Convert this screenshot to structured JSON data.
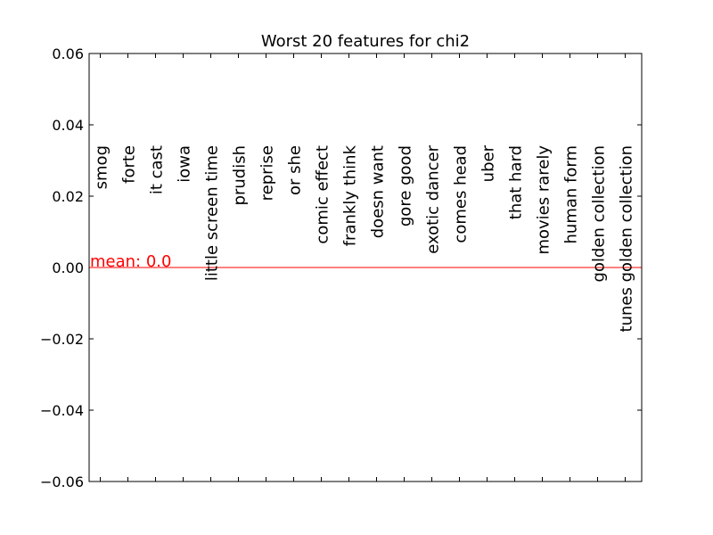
{
  "chart_data": {
    "type": "bar",
    "title": "Worst 20 features for chi2",
    "xlabel": "",
    "ylabel": "",
    "ylim": [
      -0.06,
      0.06
    ],
    "yticks": [
      0.06,
      0.04,
      0.02,
      0.0,
      -0.02,
      -0.04,
      -0.06
    ],
    "ytick_labels": [
      "0.06",
      "0.04",
      "0.02",
      "0.00",
      "−0.02",
      "−0.04",
      "−0.06"
    ],
    "categories": [
      "smog",
      "forte",
      "it cast",
      "iowa",
      "little screen time",
      "prudish",
      "reprise",
      "or she",
      "comic effect",
      "frankly think",
      "doesn want",
      "gore good",
      "exotic dancer",
      "comes head",
      "uber",
      "that hard",
      "movies rarely",
      "human form",
      "golden collection",
      "tunes golden collection"
    ],
    "values": [
      0,
      0,
      0,
      0,
      0,
      0,
      0,
      0,
      0,
      0,
      0,
      0,
      0,
      0,
      0,
      0,
      0,
      0,
      0,
      0
    ],
    "mean_line": {
      "value": 0.0,
      "label": "mean: 0.0",
      "color": "#ff0000"
    },
    "grid": false,
    "legend": "none"
  }
}
